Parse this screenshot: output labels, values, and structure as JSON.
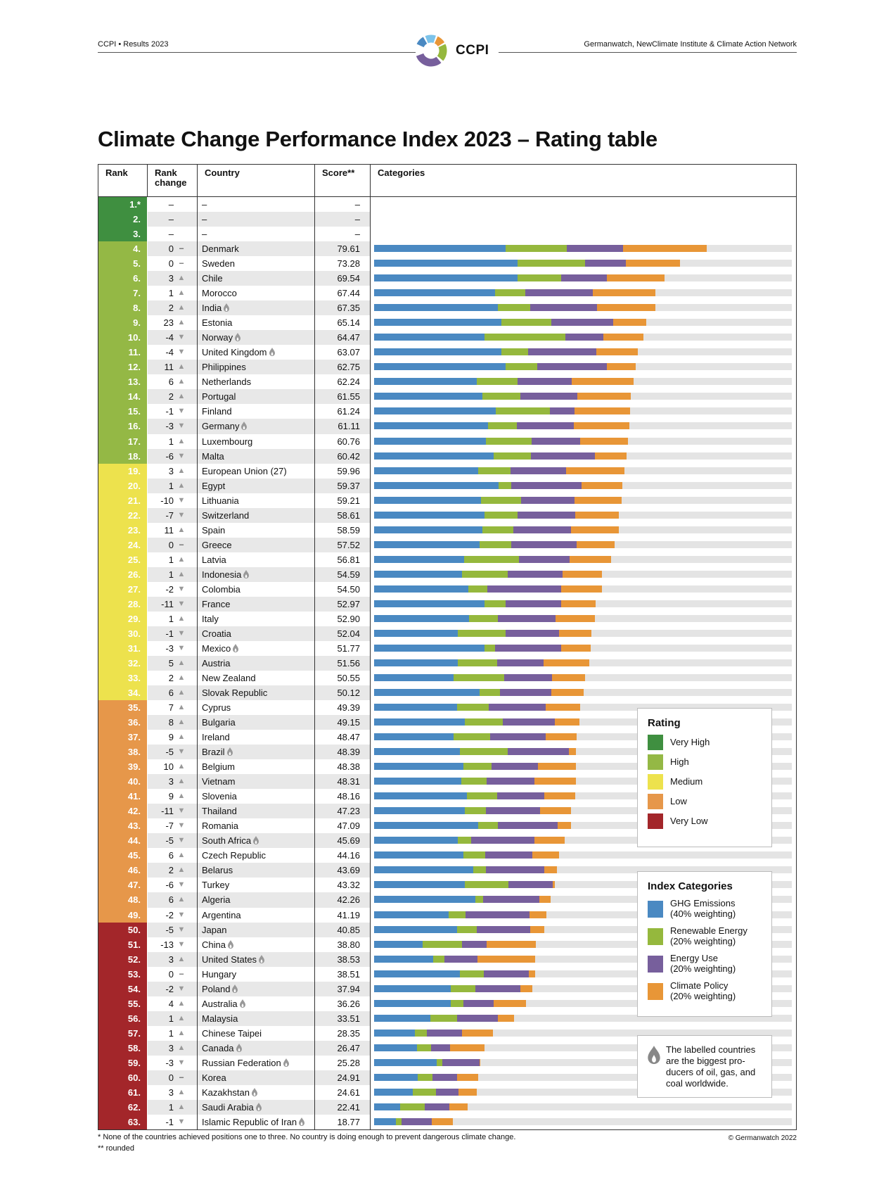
{
  "header": {
    "left": "CCPI • Results 2023",
    "right": "Germanwatch, NewClimate Institute & Climate Action Network",
    "logo_text": "CCPI"
  },
  "title": "Climate Change Performance Index 2023 – Rating table",
  "columns": {
    "rank": "Rank",
    "rank_change": "Rank change",
    "country": "Country",
    "score": "Score**",
    "categories": "Categories"
  },
  "colors": {
    "rating": {
      "very_high": "#3f8f40",
      "high": "#94b845",
      "medium": "#ede24d",
      "low": "#e6974a",
      "very_low": "#a3262a"
    },
    "categories": {
      "ghg": "#4a89c2",
      "renewable": "#95b83d",
      "energy": "#775f9c",
      "policy": "#e89637",
      "track": "#e4e4e4"
    }
  },
  "rows": [
    {
      "rank": "1.*",
      "change": "–",
      "dir": "",
      "country": "–",
      "score": "–",
      "fossil": false,
      "rating": "very_high",
      "seg": null
    },
    {
      "rank": "2.",
      "change": "–",
      "dir": "",
      "country": "–",
      "score": "–",
      "fossil": false,
      "rating": "very_high",
      "seg": null
    },
    {
      "rank": "3.",
      "change": "–",
      "dir": "",
      "country": "–",
      "score": "–",
      "fossil": false,
      "rating": "very_high",
      "seg": null
    },
    {
      "rank": "4.",
      "change": "0",
      "dir": "same",
      "country": "Denmark",
      "score": "79.61",
      "fossil": false,
      "rating": "high",
      "seg": [
        31.4,
        14.8,
        13.4,
        20.0
      ]
    },
    {
      "rank": "5.",
      "change": "0",
      "dir": "same",
      "country": "Sweden",
      "score": "73.28",
      "fossil": false,
      "rating": "high",
      "seg": [
        34.4,
        16.1,
        9.8,
        13.0
      ]
    },
    {
      "rank": "6.",
      "change": "3",
      "dir": "up",
      "country": "Chile",
      "score": "69.54",
      "fossil": false,
      "rating": "high",
      "seg": [
        34.4,
        10.3,
        11.0,
        13.8
      ]
    },
    {
      "rank": "7.",
      "change": "1",
      "dir": "up",
      "country": "Morocco",
      "score": "67.44",
      "fossil": false,
      "rating": "high",
      "seg": [
        29.0,
        7.2,
        16.1,
        15.1
      ]
    },
    {
      "rank": "8.",
      "change": "2",
      "dir": "up",
      "country": "India",
      "score": "67.35",
      "fossil": true,
      "rating": "high",
      "seg": [
        29.6,
        7.8,
        16.0,
        14.0
      ]
    },
    {
      "rank": "9.",
      "change": "23",
      "dir": "up",
      "country": "Estonia",
      "score": "65.14",
      "fossil": false,
      "rating": "high",
      "seg": [
        30.5,
        11.9,
        14.9,
        7.8
      ]
    },
    {
      "rank": "10.",
      "change": "-4",
      "dir": "down",
      "country": "Norway",
      "score": "64.47",
      "fossil": true,
      "rating": "high",
      "seg": [
        26.4,
        19.4,
        9.0,
        9.7
      ]
    },
    {
      "rank": "11.",
      "change": "-4",
      "dir": "down",
      "country": "United Kingdom",
      "score": "63.07",
      "fossil": true,
      "rating": "high",
      "seg": [
        30.4,
        6.5,
        16.3,
        9.9
      ]
    },
    {
      "rank": "12.",
      "change": "11",
      "dir": "up",
      "country": "Philippines",
      "score": "62.75",
      "fossil": false,
      "rating": "high",
      "seg": [
        31.4,
        7.7,
        16.7,
        6.9
      ]
    },
    {
      "rank": "13.",
      "change": "6",
      "dir": "up",
      "country": "Netherlands",
      "score": "62.24",
      "fossil": false,
      "rating": "high",
      "seg": [
        24.5,
        9.8,
        13.0,
        14.9
      ]
    },
    {
      "rank": "14.",
      "change": "2",
      "dir": "up",
      "country": "Portugal",
      "score": "61.55",
      "fossil": false,
      "rating": "high",
      "seg": [
        26.0,
        9.0,
        13.7,
        12.8
      ]
    },
    {
      "rank": "15.",
      "change": "-1",
      "dir": "down",
      "country": "Finland",
      "score": "61.24",
      "fossil": false,
      "rating": "high",
      "seg": [
        29.2,
        12.9,
        5.8,
        13.3
      ]
    },
    {
      "rank": "16.",
      "change": "-3",
      "dir": "down",
      "country": "Germany",
      "score": "61.11",
      "fossil": true,
      "rating": "high",
      "seg": [
        27.3,
        6.8,
        13.7,
        13.3
      ]
    },
    {
      "rank": "17.",
      "change": "1",
      "dir": "up",
      "country": "Luxembourg",
      "score": "60.76",
      "fossil": false,
      "rating": "high",
      "seg": [
        26.7,
        11.0,
        11.6,
        11.5
      ]
    },
    {
      "rank": "18.",
      "change": "-6",
      "dir": "down",
      "country": "Malta",
      "score": "60.42",
      "fossil": false,
      "rating": "high",
      "seg": [
        28.6,
        8.9,
        15.3,
        7.6
      ]
    },
    {
      "rank": "19.",
      "change": "3",
      "dir": "up",
      "country": "European Union (27)",
      "score": "59.96",
      "fossil": false,
      "rating": "medium",
      "seg": [
        24.9,
        7.8,
        13.2,
        14.1
      ]
    },
    {
      "rank": "20.",
      "change": "1",
      "dir": "up",
      "country": "Egypt",
      "score": "59.37",
      "fossil": false,
      "rating": "medium",
      "seg": [
        29.8,
        3.0,
        16.8,
        9.8
      ]
    },
    {
      "rank": "21.",
      "change": "-10",
      "dir": "down",
      "country": "Lithuania",
      "score": "59.21",
      "fossil": false,
      "rating": "medium",
      "seg": [
        25.6,
        9.6,
        12.8,
        11.2
      ]
    },
    {
      "rank": "22.",
      "change": "-7",
      "dir": "down",
      "country": "Switzerland",
      "score": "58.61",
      "fossil": false,
      "rating": "medium",
      "seg": [
        26.5,
        7.8,
        13.9,
        10.4
      ]
    },
    {
      "rank": "23.",
      "change": "11",
      "dir": "up",
      "country": "Spain",
      "score": "58.59",
      "fossil": false,
      "rating": "medium",
      "seg": [
        25.9,
        7.4,
        13.9,
        11.4
      ]
    },
    {
      "rank": "24.",
      "change": "0",
      "dir": "same",
      "country": "Greece",
      "score": "57.52",
      "fossil": false,
      "rating": "medium",
      "seg": [
        25.2,
        7.6,
        15.7,
        9.0
      ]
    },
    {
      "rank": "25.",
      "change": "1",
      "dir": "up",
      "country": "Latvia",
      "score": "56.81",
      "fossil": false,
      "rating": "medium",
      "seg": [
        21.5,
        13.1,
        12.2,
        10.0
      ]
    },
    {
      "rank": "26.",
      "change": "1",
      "dir": "up",
      "country": "Indonesia",
      "score": "54.59",
      "fossil": true,
      "rating": "medium",
      "seg": [
        21.0,
        11.0,
        13.2,
        9.4
      ]
    },
    {
      "rank": "27.",
      "change": "-2",
      "dir": "down",
      "country": "Colombia",
      "score": "54.50",
      "fossil": false,
      "rating": "medium",
      "seg": [
        22.6,
        4.5,
        17.7,
        9.7
      ]
    },
    {
      "rank": "28.",
      "change": "-11",
      "dir": "down",
      "country": "France",
      "score": "52.97",
      "fossil": false,
      "rating": "medium",
      "seg": [
        26.5,
        5.0,
        13.2,
        8.3
      ]
    },
    {
      "rank": "29.",
      "change": "1",
      "dir": "up",
      "country": "Italy",
      "score": "52.90",
      "fossil": false,
      "rating": "medium",
      "seg": [
        22.8,
        6.8,
        13.9,
        9.4
      ]
    },
    {
      "rank": "30.",
      "change": "-1",
      "dir": "down",
      "country": "Croatia",
      "score": "52.04",
      "fossil": false,
      "rating": "medium",
      "seg": [
        20.0,
        11.5,
        12.7,
        7.8
      ]
    },
    {
      "rank": "31.",
      "change": "-3",
      "dir": "down",
      "country": "Mexico",
      "score": "51.77",
      "fossil": true,
      "rating": "medium",
      "seg": [
        26.5,
        2.4,
        15.9,
        7.0
      ]
    },
    {
      "rank": "32.",
      "change": "5",
      "dir": "up",
      "country": "Austria",
      "score": "51.56",
      "fossil": false,
      "rating": "medium",
      "seg": [
        20.0,
        9.5,
        11.0,
        11.1
      ]
    },
    {
      "rank": "33.",
      "change": "2",
      "dir": "up",
      "country": "New Zealand",
      "score": "50.55",
      "fossil": false,
      "rating": "medium",
      "seg": [
        19.1,
        12.0,
        11.5,
        7.9
      ]
    },
    {
      "rank": "34.",
      "change": "6",
      "dir": "up",
      "country": "Slovak Republic",
      "score": "50.12",
      "fossil": false,
      "rating": "medium",
      "seg": [
        25.2,
        5.0,
        12.2,
        7.7
      ]
    },
    {
      "rank": "35.",
      "change": "7",
      "dir": "up",
      "country": "Cyprus",
      "score": "49.39",
      "fossil": false,
      "rating": "low",
      "seg": [
        19.8,
        7.6,
        13.7,
        8.3
      ]
    },
    {
      "rank": "36.",
      "change": "8",
      "dir": "up",
      "country": "Bulgaria",
      "score": "49.15",
      "fossil": false,
      "rating": "low",
      "seg": [
        21.7,
        9.1,
        12.4,
        5.9
      ]
    },
    {
      "rank": "37.",
      "change": "9",
      "dir": "up",
      "country": "Ireland",
      "score": "48.47",
      "fossil": false,
      "rating": "low",
      "seg": [
        19.1,
        8.6,
        13.3,
        7.5
      ]
    },
    {
      "rank": "38.",
      "change": "-5",
      "dir": "down",
      "country": "Brazil",
      "score": "48.39",
      "fossil": true,
      "rating": "low",
      "seg": [
        20.6,
        11.4,
        14.7,
        1.7
      ]
    },
    {
      "rank": "39.",
      "change": "10",
      "dir": "up",
      "country": "Belgium",
      "score": "48.38",
      "fossil": false,
      "rating": "low",
      "seg": [
        21.4,
        6.7,
        11.2,
        9.1
      ]
    },
    {
      "rank": "40.",
      "change": "3",
      "dir": "up",
      "country": "Vietnam",
      "score": "48.31",
      "fossil": false,
      "rating": "low",
      "seg": [
        20.8,
        6.2,
        11.4,
        9.9
      ]
    },
    {
      "rank": "41.",
      "change": "9",
      "dir": "up",
      "country": "Slovenia",
      "score": "48.16",
      "fossil": false,
      "rating": "low",
      "seg": [
        22.3,
        7.2,
        11.3,
        7.4
      ]
    },
    {
      "rank": "42.",
      "change": "-11",
      "dir": "down",
      "country": "Thailand",
      "score": "47.23",
      "fossil": false,
      "rating": "low",
      "seg": [
        21.8,
        5.0,
        13.0,
        7.4
      ]
    },
    {
      "rank": "43.",
      "change": "-7",
      "dir": "down",
      "country": "Romania",
      "score": "47.09",
      "fossil": false,
      "rating": "low",
      "seg": [
        24.9,
        4.8,
        14.3,
        3.1
      ]
    },
    {
      "rank": "44.",
      "change": "-5",
      "dir": "down",
      "country": "South Africa",
      "score": "45.69",
      "fossil": true,
      "rating": "low",
      "seg": [
        20.0,
        3.3,
        15.1,
        7.3
      ]
    },
    {
      "rank": "45.",
      "change": "6",
      "dir": "up",
      "country": "Czech Republic",
      "score": "44.16",
      "fossil": false,
      "rating": "low",
      "seg": [
        21.3,
        5.3,
        11.2,
        6.4
      ]
    },
    {
      "rank": "46.",
      "change": "2",
      "dir": "up",
      "country": "Belarus",
      "score": "43.69",
      "fossil": false,
      "rating": "low",
      "seg": [
        23.7,
        3.1,
        13.9,
        3.0
      ]
    },
    {
      "rank": "47.",
      "change": "-6",
      "dir": "down",
      "country": "Turkey",
      "score": "43.32",
      "fossil": false,
      "rating": "low",
      "seg": [
        21.8,
        10.3,
        10.6,
        0.6
      ]
    },
    {
      "rank": "48.",
      "change": "6",
      "dir": "up",
      "country": "Algeria",
      "score": "42.26",
      "fossil": false,
      "rating": "low",
      "seg": [
        24.3,
        1.8,
        13.5,
        2.7
      ]
    },
    {
      "rank": "49.",
      "change": "-2",
      "dir": "down",
      "country": "Argentina",
      "score": "41.19",
      "fossil": false,
      "rating": "low",
      "seg": [
        17.8,
        4.1,
        15.3,
        4.0
      ]
    },
    {
      "rank": "50.",
      "change": "-5",
      "dir": "down",
      "country": "Japan",
      "score": "40.85",
      "fossil": false,
      "rating": "very_low",
      "seg": [
        19.8,
        4.7,
        12.9,
        3.4
      ]
    },
    {
      "rank": "51.",
      "change": "-13",
      "dir": "down",
      "country": "China",
      "score": "38.80",
      "fossil": true,
      "rating": "very_low",
      "seg": [
        11.6,
        9.5,
        5.9,
        11.8
      ]
    },
    {
      "rank": "52.",
      "change": "3",
      "dir": "up",
      "country": "United States",
      "score": "38.53",
      "fossil": true,
      "rating": "very_low",
      "seg": [
        14.2,
        2.6,
        8.0,
        13.7
      ]
    },
    {
      "rank": "53.",
      "change": "0",
      "dir": "same",
      "country": "Hungary",
      "score": "38.51",
      "fossil": false,
      "rating": "very_low",
      "seg": [
        20.5,
        5.8,
        10.8,
        1.4
      ]
    },
    {
      "rank": "54.",
      "change": "-2",
      "dir": "down",
      "country": "Poland",
      "score": "37.94",
      "fossil": true,
      "rating": "very_low",
      "seg": [
        18.3,
        5.9,
        10.8,
        2.9
      ]
    },
    {
      "rank": "55.",
      "change": "4",
      "dir": "up",
      "country": "Australia",
      "score": "36.26",
      "fossil": true,
      "rating": "very_low",
      "seg": [
        18.3,
        3.1,
        7.3,
        7.6
      ]
    },
    {
      "rank": "56.",
      "change": "1",
      "dir": "up",
      "country": "Malaysia",
      "score": "33.51",
      "fossil": false,
      "rating": "very_low",
      "seg": [
        13.4,
        6.4,
        9.9,
        3.8
      ]
    },
    {
      "rank": "57.",
      "change": "1",
      "dir": "up",
      "country": "Chinese Taipei",
      "score": "28.35",
      "fossil": false,
      "rating": "very_low",
      "seg": [
        9.8,
        2.8,
        8.4,
        7.4
      ]
    },
    {
      "rank": "58.",
      "change": "3",
      "dir": "up",
      "country": "Canada",
      "score": "26.47",
      "fossil": true,
      "rating": "very_low",
      "seg": [
        10.3,
        3.4,
        4.5,
        8.3
      ]
    },
    {
      "rank": "59.",
      "change": "-3",
      "dir": "down",
      "country": "Russian Federation",
      "score": "25.28",
      "fossil": true,
      "rating": "very_low",
      "seg": [
        15.0,
        1.3,
        8.9,
        0.1
      ]
    },
    {
      "rank": "60.",
      "change": "0",
      "dir": "same",
      "country": "Korea",
      "score": "24.91",
      "fossil": false,
      "rating": "very_low",
      "seg": [
        10.5,
        3.5,
        5.9,
        5.0
      ]
    },
    {
      "rank": "61.",
      "change": "3",
      "dir": "up",
      "country": "Kazakhstan",
      "score": "24.61",
      "fossil": true,
      "rating": "very_low",
      "seg": [
        9.2,
        5.6,
        5.4,
        4.4
      ]
    },
    {
      "rank": "62.",
      "change": "1",
      "dir": "up",
      "country": "Saudi Arabia",
      "score": "22.41",
      "fossil": true,
      "rating": "very_low",
      "seg": [
        6.3,
        5.9,
        5.9,
        4.3
      ]
    },
    {
      "rank": "63.",
      "change": "-1",
      "dir": "down",
      "country": "Islamic Republic of Iran",
      "score": "18.77",
      "fossil": true,
      "rating": "very_low",
      "seg": [
        5.2,
        1.4,
        7.2,
        5.0
      ]
    }
  ],
  "legend_rating": {
    "title": "Rating",
    "items": [
      {
        "label": "Very High",
        "key": "very_high"
      },
      {
        "label": "High",
        "key": "high"
      },
      {
        "label": "Medium",
        "key": "medium"
      },
      {
        "label": "Low",
        "key": "low"
      },
      {
        "label": "Very Low",
        "key": "very_low"
      }
    ]
  },
  "legend_categories": {
    "title": "Index Categories",
    "items": [
      {
        "label": "GHG Emissions",
        "weight": "(40% weighting)",
        "key": "ghg"
      },
      {
        "label": "Renewable Energy",
        "weight": "(20% weighting)",
        "key": "renewable"
      },
      {
        "label": "Energy Use",
        "weight": "(20% weighting)",
        "key": "energy"
      },
      {
        "label": "Climate Policy",
        "weight": "(20% weighting)",
        "key": "policy"
      }
    ]
  },
  "fossil_note": {
    "icon": "flame-icon",
    "text": "The labelled countries are the biggest pro-ducers of oil, gas, and coal worldwide."
  },
  "footer": {
    "note1": "* None of the countries achieved positions one to three. No country is doing enough to prevent dangerous climate change.",
    "note2": "** rounded",
    "copyright": "© Germanwatch 2022"
  }
}
